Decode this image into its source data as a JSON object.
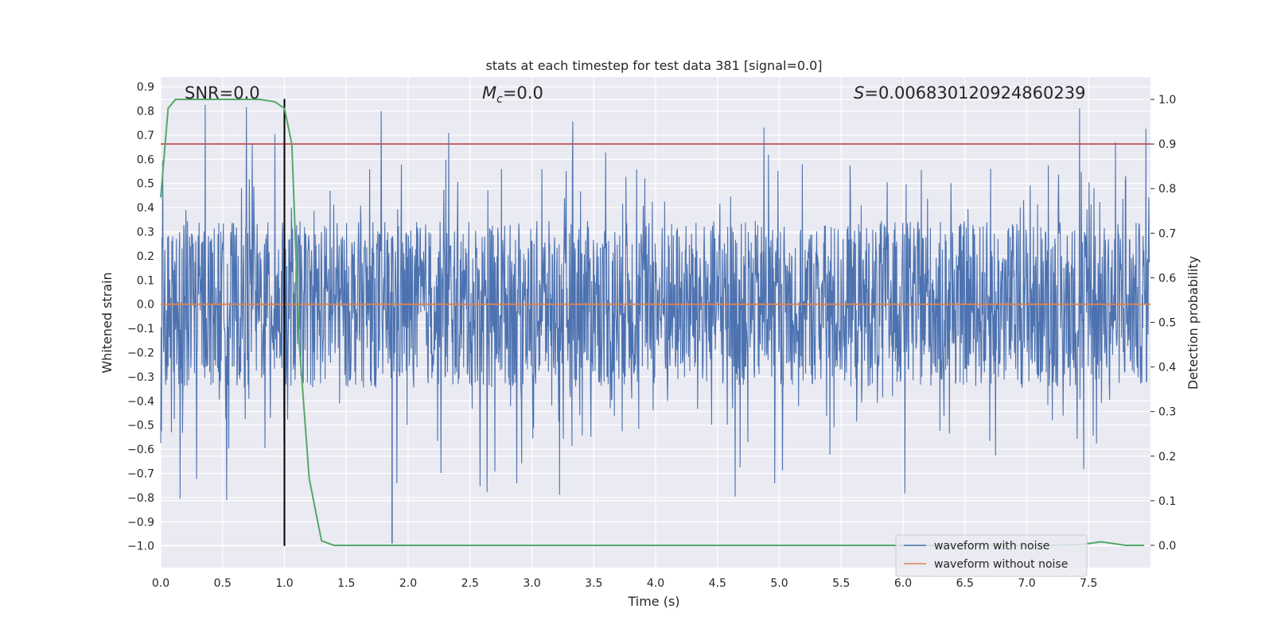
{
  "chart_data": {
    "type": "line",
    "title": "stats at each timestep for test data 381 [signal=0.0]",
    "xlabel": "Time (s)",
    "ylabel": "Whitened strain",
    "y2label": "Detection probability",
    "xlim": [
      0.0,
      8.0
    ],
    "ylim": [
      -1.09,
      0.94
    ],
    "y2lim": [
      -0.05,
      1.05
    ],
    "x_ticks": [
      "0.0",
      "0.5",
      "1.0",
      "1.5",
      "2.0",
      "2.5",
      "3.0",
      "3.5",
      "4.0",
      "4.5",
      "5.0",
      "5.5",
      "6.0",
      "6.5",
      "7.0",
      "7.5"
    ],
    "y_ticks": [
      "0.9",
      "0.8",
      "0.7",
      "0.6",
      "0.5",
      "0.4",
      "0.3",
      "0.2",
      "0.1",
      "0.0",
      "−0.1",
      "−0.2",
      "−0.3",
      "−0.4",
      "−0.5",
      "−0.6",
      "−0.7",
      "−0.8",
      "−0.9",
      "−1.0"
    ],
    "y2_ticks": [
      "1.0",
      "0.9",
      "0.8",
      "0.7",
      "0.6",
      "0.5",
      "0.4",
      "0.3",
      "0.2",
      "0.1",
      "0.0"
    ],
    "annotations": {
      "snr": "SNR=0.0",
      "mc": "=0.0",
      "mc_symbol": "M",
      "mc_sub": "c",
      "s": "=0.006830120924860239",
      "s_symbol": "S"
    },
    "series": [
      {
        "name": "waveform with noise",
        "color": "#4c72b0",
        "noise_envelope": {
          "typical_abs": 0.3,
          "max_pos": 0.83,
          "max_neg": -0.99
        }
      },
      {
        "name": "waveform without noise",
        "color": "#dd8452",
        "values_constant": 0.0
      },
      {
        "color": "#55a868",
        "axis": "right",
        "x": [
          0.0,
          0.06,
          0.12,
          0.5,
          0.8,
          0.92,
          1.0,
          1.06,
          1.12,
          1.2,
          1.3,
          1.4,
          1.46,
          1.5,
          7.2,
          7.45,
          7.6,
          7.7,
          7.8,
          7.95
        ],
        "y": [
          0.78,
          0.98,
          1.0,
          1.0,
          1.0,
          0.995,
          0.98,
          0.9,
          0.45,
          0.15,
          0.01,
          0.0,
          0.0,
          0.0,
          0.0,
          0.002,
          0.008,
          0.004,
          0.0,
          0.0
        ]
      },
      {
        "color": "#c44e52",
        "axis": "right",
        "values_constant": 0.9
      }
    ],
    "vertical_marker": {
      "x": 1.0,
      "color": "#000000",
      "y_from": -1.0,
      "y_to": 0.85
    },
    "legend_placement": "lower-right",
    "grid": true,
    "background": "#eaeaf2"
  }
}
